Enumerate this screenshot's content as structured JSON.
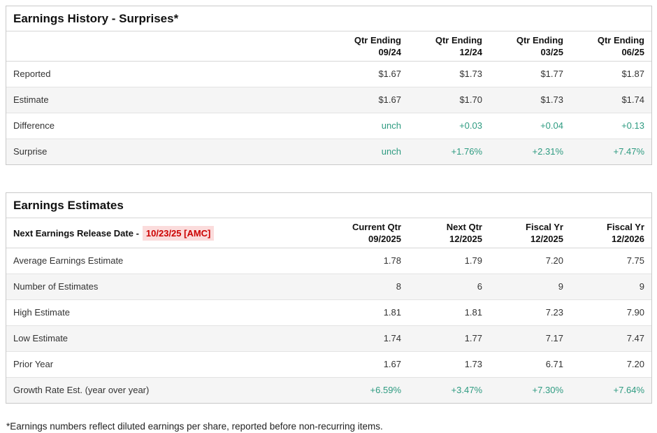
{
  "colors": {
    "green": "#2e9b81",
    "red": "#cc0000",
    "red_highlight_bg": "#fbdcdc",
    "row_alt_bg": "#f5f5f5",
    "border": "#c9c9c9",
    "row_border": "#e3e3e3",
    "text": "#333333",
    "heading": "#111111"
  },
  "earnings_history": {
    "title": "Earnings History - Surprises*",
    "columns": [
      {
        "line1": "Qtr Ending",
        "line2": "09/24"
      },
      {
        "line1": "Qtr Ending",
        "line2": "12/24"
      },
      {
        "line1": "Qtr Ending",
        "line2": "03/25"
      },
      {
        "line1": "Qtr Ending",
        "line2": "06/25"
      }
    ],
    "rows": [
      {
        "label": "Reported",
        "values": [
          "$1.67",
          "$1.73",
          "$1.77",
          "$1.87"
        ],
        "value_color": "default"
      },
      {
        "label": "Estimate",
        "values": [
          "$1.67",
          "$1.70",
          "$1.73",
          "$1.74"
        ],
        "value_color": "default"
      },
      {
        "label": "Difference",
        "values": [
          "unch",
          "+0.03",
          "+0.04",
          "+0.13"
        ],
        "value_color": "green"
      },
      {
        "label": "Surprise",
        "values": [
          "unch",
          "+1.76%",
          "+2.31%",
          "+7.47%"
        ],
        "value_color": "green"
      }
    ]
  },
  "earnings_estimates": {
    "title": "Earnings Estimates",
    "release_date_label": "Next Earnings Release Date -",
    "release_date_value": "10/23/25 [AMC]",
    "columns": [
      {
        "line1": "Current Qtr",
        "line2": "09/2025"
      },
      {
        "line1": "Next Qtr",
        "line2": "12/2025"
      },
      {
        "line1": "Fiscal Yr",
        "line2": "12/2025"
      },
      {
        "line1": "Fiscal Yr",
        "line2": "12/2026"
      }
    ],
    "rows": [
      {
        "label": "Average Earnings Estimate",
        "values": [
          "1.78",
          "1.79",
          "7.20",
          "7.75"
        ],
        "value_color": "default"
      },
      {
        "label": "Number of Estimates",
        "values": [
          "8",
          "6",
          "9",
          "9"
        ],
        "value_color": "default"
      },
      {
        "label": "High Estimate",
        "values": [
          "1.81",
          "1.81",
          "7.23",
          "7.90"
        ],
        "value_color": "default"
      },
      {
        "label": "Low Estimate",
        "values": [
          "1.74",
          "1.77",
          "7.17",
          "7.47"
        ],
        "value_color": "default"
      },
      {
        "label": "Prior Year",
        "values": [
          "1.67",
          "1.73",
          "6.71",
          "7.20"
        ],
        "value_color": "default"
      },
      {
        "label": "Growth Rate Est. (year over year)",
        "values": [
          "+6.59%",
          "+3.47%",
          "+7.30%",
          "+7.64%"
        ],
        "value_color": "green"
      }
    ]
  },
  "footnote": "*Earnings numbers reflect diluted earnings per share, reported before non-recurring items."
}
